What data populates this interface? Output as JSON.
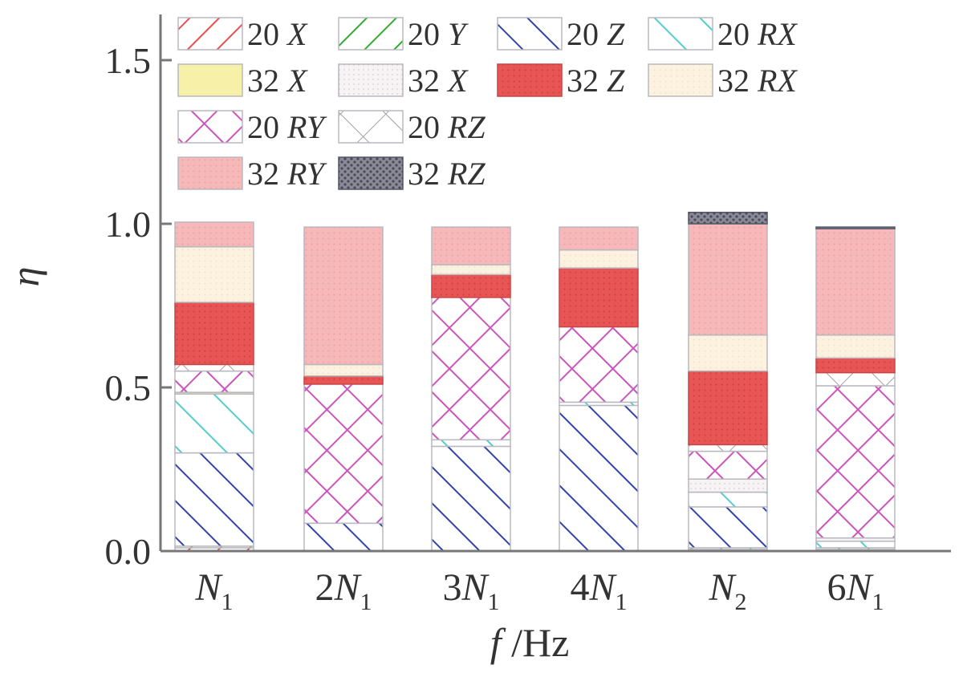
{
  "chart_data": {
    "type": "bar",
    "stacked": true,
    "title": "",
    "xlabel": {
      "var": "f",
      "rest": " /Hz"
    },
    "ylabel": "η",
    "ylim": [
      0,
      1.6
    ],
    "yticks": [
      "0.0",
      "0.5",
      "1.0",
      "1.5"
    ],
    "ytick_values": [
      0,
      0.5,
      1.0,
      1.5
    ],
    "grid": false,
    "legend_position": "top",
    "categories": [
      {
        "prefix": "",
        "var": "N",
        "sub": "1"
      },
      {
        "prefix": "2",
        "var": "N",
        "sub": "1"
      },
      {
        "prefix": "3",
        "var": "N",
        "sub": "1"
      },
      {
        "prefix": "4",
        "var": "N",
        "sub": "1"
      },
      {
        "prefix": "",
        "var": "N",
        "sub": "2"
      },
      {
        "prefix": "6",
        "var": "N",
        "sub": "1"
      }
    ],
    "series": [
      {
        "num": "20",
        "dir": "X",
        "pattern": "fhatch",
        "color": "#e85050",
        "values": [
          0.01,
          0.0,
          0.0,
          0.0,
          0.005,
          0.005
        ]
      },
      {
        "num": "20",
        "dir": "Y",
        "pattern": "fhatch",
        "color": "#33aa33",
        "values": [
          0.005,
          0.0,
          0.0,
          0.0,
          0.005,
          0.005
        ]
      },
      {
        "num": "20",
        "dir": "Z",
        "pattern": "bhatch",
        "color": "#3344aa",
        "values": [
          0.285,
          0.085,
          0.32,
          0.445,
          0.125,
          0.0
        ]
      },
      {
        "num": "20",
        "dir": "RX",
        "pattern": "bhatch",
        "color": "#55cccc",
        "values": [
          0.18,
          0.0,
          0.02,
          0.01,
          0.045,
          0.02
        ]
      },
      {
        "num": "32",
        "dir": "X",
        "pattern": "solid",
        "color": "#f6f0a8",
        "values": [
          0.005,
          0.0,
          0.0,
          0.0,
          0.0,
          0.0
        ]
      },
      {
        "num": "32",
        "dir": "X",
        "pattern": "dots",
        "color": "#f4f0f2",
        "values": [
          0.0,
          0.0,
          0.0,
          0.0,
          0.04,
          0.01
        ]
      },
      {
        "num": "20",
        "dir": "RY",
        "pattern": "cross",
        "color": "#cc55bb",
        "values": [
          0.065,
          0.425,
          0.435,
          0.23,
          0.085,
          0.465
        ]
      },
      {
        "num": "20",
        "dir": "RZ",
        "pattern": "xbox",
        "color": "#999999",
        "values": [
          0.02,
          0.0,
          0.0,
          0.0,
          0.02,
          0.04
        ]
      },
      {
        "num": "32",
        "dir": "Z",
        "pattern": "reddots",
        "color": "#e85555",
        "values": [
          0.19,
          0.025,
          0.07,
          0.18,
          0.225,
          0.045
        ]
      },
      {
        "num": "32",
        "dir": "RX",
        "pattern": "cream",
        "color": "#fbf0dd",
        "values": [
          0.17,
          0.035,
          0.03,
          0.055,
          0.11,
          0.07
        ]
      },
      {
        "num": "32",
        "dir": "RY",
        "pattern": "pink",
        "color": "#f4b3b3",
        "values": [
          0.075,
          0.42,
          0.115,
          0.07,
          0.34,
          0.325
        ]
      },
      {
        "num": "32",
        "dir": "RZ",
        "pattern": "dark",
        "color": "#555566",
        "values": [
          0.0,
          0.0,
          0.0,
          0.0,
          0.035,
          0.005
        ]
      }
    ],
    "legend_rows": [
      [
        0,
        1,
        2,
        3
      ],
      [
        4,
        5,
        8,
        9
      ],
      [
        6,
        7
      ],
      [
        10,
        11
      ]
    ]
  }
}
